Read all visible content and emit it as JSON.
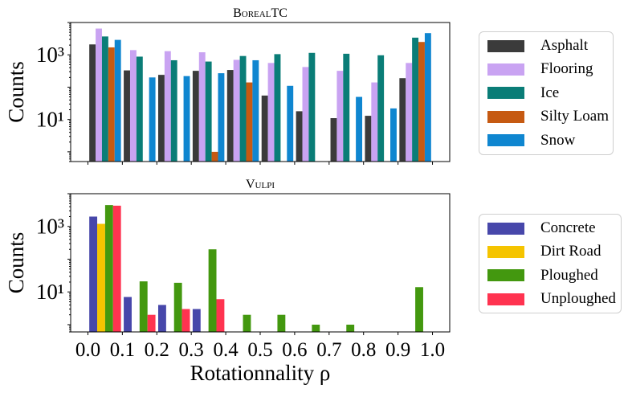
{
  "colors": {
    "Asphalt": "#3b3b3b",
    "Flooring": "#c9a3f2",
    "Ice": "#0a7d77",
    "Silty Loam": "#c65a12",
    "Snow": "#0f86d0",
    "Concrete": "#4747aa",
    "Dirt Road": "#f5c400",
    "Ploughed": "#43980f",
    "Unploughed": "#ff3350"
  },
  "chart_data": [
    {
      "type": "bar",
      "title": "BorealTC",
      "ylabel": "Counts",
      "xlabel": "",
      "yscale": "log",
      "ylim": [
        0.5,
        10000
      ],
      "ytick_labels": [
        "10³",
        "10¹"
      ],
      "ytick_values": [
        1000,
        10
      ],
      "bin_edges": [
        0.0,
        0.1,
        0.2,
        0.3,
        0.4,
        0.5,
        0.6,
        0.7,
        0.8,
        0.9,
        1.0
      ],
      "legend_position": "right",
      "series": [
        {
          "name": "Asphalt",
          "values": [
            2100,
            330,
            240,
            320,
            340,
            55,
            18,
            11,
            13,
            190
          ]
        },
        {
          "name": "Flooring",
          "values": [
            6500,
            1400,
            1300,
            1200,
            700,
            560,
            420,
            320,
            140,
            560
          ]
        },
        {
          "name": "Ice",
          "values": [
            3700,
            880,
            680,
            620,
            920,
            1050,
            1150,
            1080,
            970,
            3400
          ]
        },
        {
          "name": "Silty Loam",
          "values": [
            1700,
            null,
            null,
            1,
            140,
            null,
            null,
            null,
            null,
            2500
          ]
        },
        {
          "name": "Snow",
          "values": [
            2900,
            200,
            220,
            270,
            680,
            110,
            null,
            50,
            22,
            4700
          ]
        }
      ]
    },
    {
      "type": "bar",
      "title": "Vulpi",
      "ylabel": "Counts",
      "xlabel": "Rotationnality ρ",
      "yscale": "log",
      "ylim": [
        0.6,
        10000
      ],
      "ytick_labels": [
        "10³",
        "10¹"
      ],
      "ytick_values": [
        1000,
        10
      ],
      "xtick_labels": [
        "0.0",
        "0.1",
        "0.2",
        "0.3",
        "0.4",
        "0.5",
        "0.6",
        "0.7",
        "0.8",
        "0.9",
        "1.0"
      ],
      "bin_edges": [
        0.0,
        0.1,
        0.2,
        0.3,
        0.4,
        0.5,
        0.6,
        0.7,
        0.8,
        0.9,
        1.0
      ],
      "legend_position": "right",
      "series": [
        {
          "name": "Concrete",
          "values": [
            2000,
            7,
            4,
            3,
            null,
            null,
            null,
            null,
            null,
            null
          ]
        },
        {
          "name": "Dirt Road",
          "values": [
            1200,
            null,
            null,
            null,
            null,
            null,
            null,
            null,
            null,
            null
          ]
        },
        {
          "name": "Ploughed",
          "values": [
            4500,
            21,
            19,
            200,
            2,
            2,
            1,
            1,
            null,
            14
          ]
        },
        {
          "name": "Unploughed",
          "values": [
            4300,
            2,
            3,
            6,
            null,
            null,
            null,
            null,
            null,
            null
          ]
        }
      ]
    }
  ]
}
